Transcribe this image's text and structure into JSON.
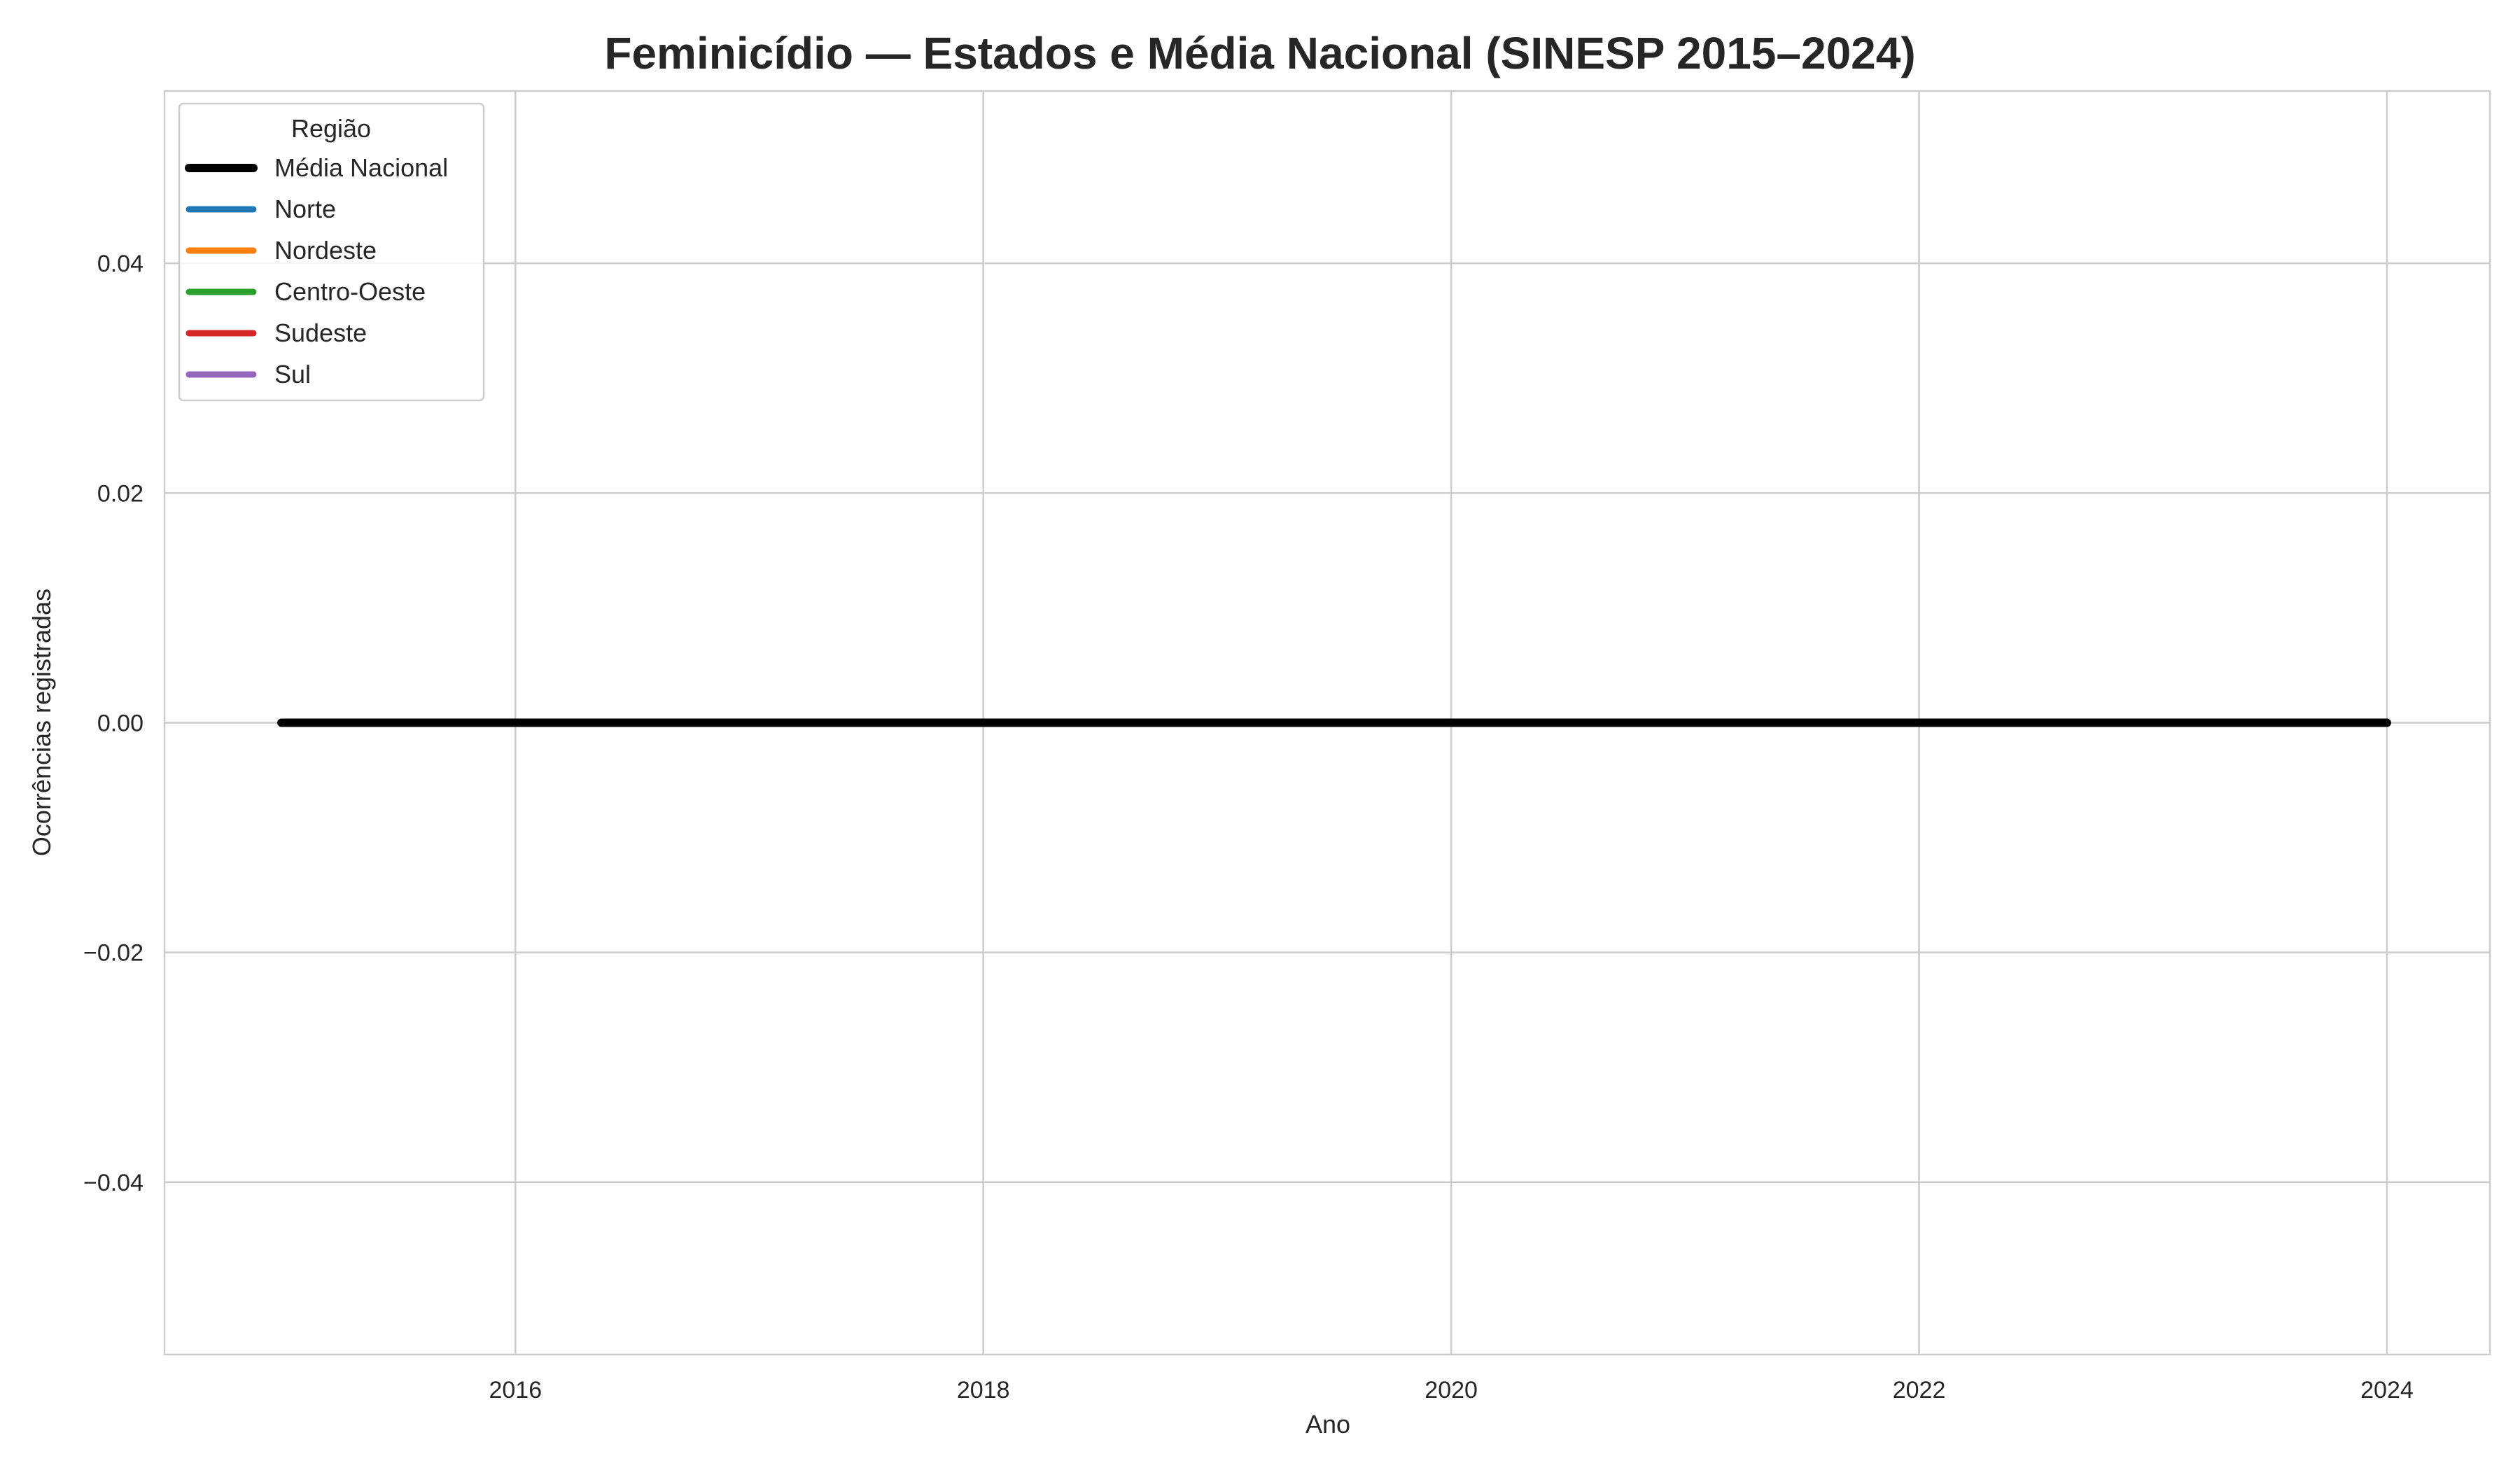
{
  "chart_data": {
    "type": "line",
    "title": "Feminicídio — Estados e Média Nacional (SINESP 2015–2024)",
    "xlabel": "Ano",
    "ylabel": "Ocorrências registradas",
    "xlim": [
      2014.5,
      2024.44
    ],
    "ylim": [
      -0.055,
      0.055
    ],
    "x_ticks": [
      2016,
      2018,
      2020,
      2022,
      2024
    ],
    "y_ticks": [
      -0.04,
      -0.02,
      0.0,
      0.02,
      0.04
    ],
    "y_tick_labels": [
      "−0.04",
      "−0.02",
      "0.00",
      "0.02",
      "0.04"
    ],
    "grid": true,
    "legend": {
      "title": "Região",
      "position": "top-left",
      "entries": [
        {
          "name": "Média Nacional",
          "color": "#000000",
          "thick": true
        },
        {
          "name": "Norte",
          "color": "#1f77b4",
          "thick": false
        },
        {
          "name": "Nordeste",
          "color": "#ff7f0e",
          "thick": false
        },
        {
          "name": "Centro-Oeste",
          "color": "#2ca02c",
          "thick": false
        },
        {
          "name": "Sudeste",
          "color": "#d62728",
          "thick": false
        },
        {
          "name": "Sul",
          "color": "#9467bd",
          "thick": false
        }
      ]
    },
    "x": [
      2015,
      2016,
      2017,
      2018,
      2019,
      2020,
      2021,
      2022,
      2023,
      2024
    ],
    "series": [
      {
        "name": "Média Nacional",
        "color": "#000000",
        "values": [
          0,
          0,
          0,
          0,
          0,
          0,
          0,
          0,
          0,
          0
        ]
      }
    ]
  }
}
